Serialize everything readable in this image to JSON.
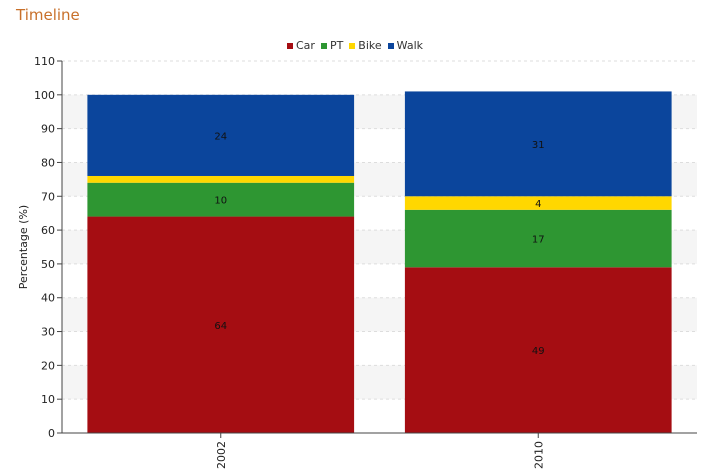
{
  "page": {
    "title": "Timeline"
  },
  "chart_data": {
    "type": "bar",
    "stacked": true,
    "categories": [
      "2002",
      "2010"
    ],
    "series": [
      {
        "name": "Car",
        "color": "#a50d12",
        "values": [
          64,
          49
        ]
      },
      {
        "name": "PT",
        "color": "#2e9632",
        "values": [
          10,
          17
        ]
      },
      {
        "name": "Bike",
        "color": "#ffd700",
        "values": [
          2,
          4
        ]
      },
      {
        "name": "Walk",
        "color": "#0b459c",
        "values": [
          24,
          31
        ]
      }
    ],
    "data_labels": [
      {
        "series": "Car",
        "labels": [
          "64",
          "49"
        ]
      },
      {
        "series": "PT",
        "labels": [
          "10",
          "17"
        ]
      },
      {
        "series": "Bike",
        "labels": [
          "",
          "4"
        ]
      },
      {
        "series": "Walk",
        "labels": [
          "24",
          "31"
        ]
      }
    ],
    "title": "",
    "xlabel": "",
    "ylabel": "Percentage (%)",
    "ylim": [
      0,
      110
    ],
    "yticks": [
      "0",
      "10",
      "20",
      "30",
      "40",
      "50",
      "60",
      "70",
      "80",
      "90",
      "100",
      "110"
    ],
    "legend_position": "top",
    "grid": true
  }
}
